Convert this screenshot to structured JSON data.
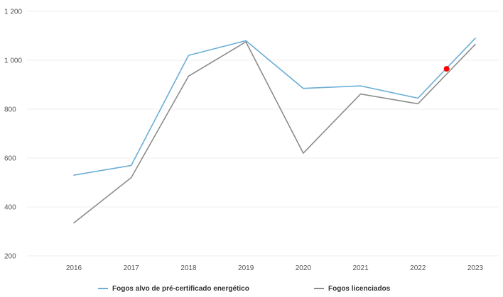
{
  "chart_data": {
    "type": "line",
    "categories": [
      "2016",
      "2017",
      "2018",
      "2019",
      "2020",
      "2021",
      "2022",
      "2023"
    ],
    "series": [
      {
        "name": "Fogos alvo de pré-certificado energético",
        "color": "#6aaed6",
        "values": [
          530,
          570,
          1020,
          1080,
          885,
          895,
          845,
          1090
        ]
      },
      {
        "name": "Fogos licenciados",
        "color": "#8c8c8c",
        "values": [
          335,
          520,
          935,
          1075,
          620,
          862,
          822,
          1065
        ]
      }
    ],
    "y_ticks": [
      "200",
      "400",
      "600",
      "800",
      "1 000",
      "1 200"
    ],
    "ylim": [
      200,
      1200
    ],
    "grid": true,
    "legend_position": "bottom",
    "marker": {
      "color": "#ff0000",
      "x_between": [
        "2022",
        "2023"
      ],
      "x_fraction": 0.5,
      "value": 965
    }
  }
}
